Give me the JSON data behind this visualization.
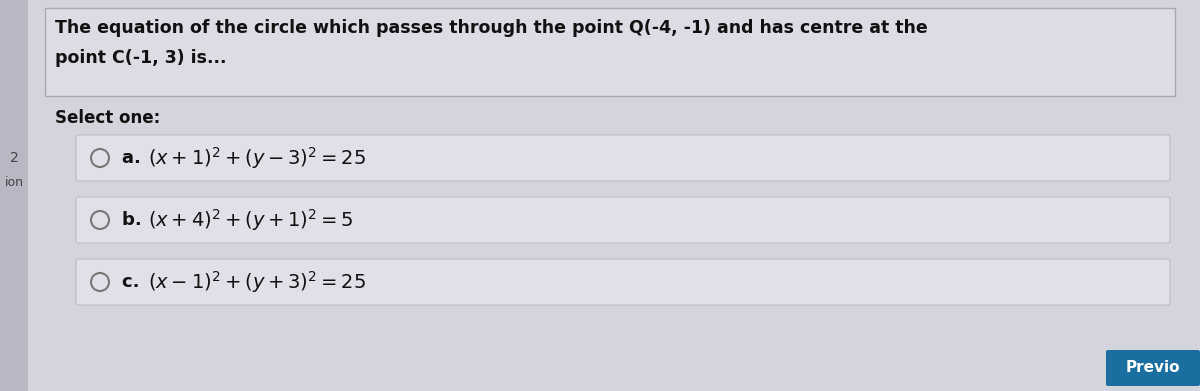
{
  "bg_color": "#c8c8d0",
  "main_bg_color": "#d4d4dc",
  "question_box_color": "#dcdce4",
  "option_box_color": "#e0e0e8",
  "question_text_line1": "The equation of the circle which passes through the point Q(-4, -1) and has centre at the",
  "question_text_line2": "point C(-1, 3) is...",
  "select_one_text": "Select one:",
  "options": [
    {
      "label": "a. ",
      "formula": "$(x + 1)^2 + (y - 3)^2 = 25$"
    },
    {
      "label": "b. ",
      "formula": "$(x + 4)^2 + (y + 1)^2 = 5$"
    },
    {
      "label": "c. ",
      "formula": "$(x - 1)^2 + (y + 3)^2 = 25$"
    }
  ],
  "left_strip_color": "#b8b8c4",
  "prev_button_color": "#1a6fa0",
  "prev_button_text": "Previo",
  "left_label_2": "2",
  "left_label_ion": "ion",
  "text_color": "#111111",
  "radio_color": "#777777",
  "border_color": "#a8a8b4"
}
